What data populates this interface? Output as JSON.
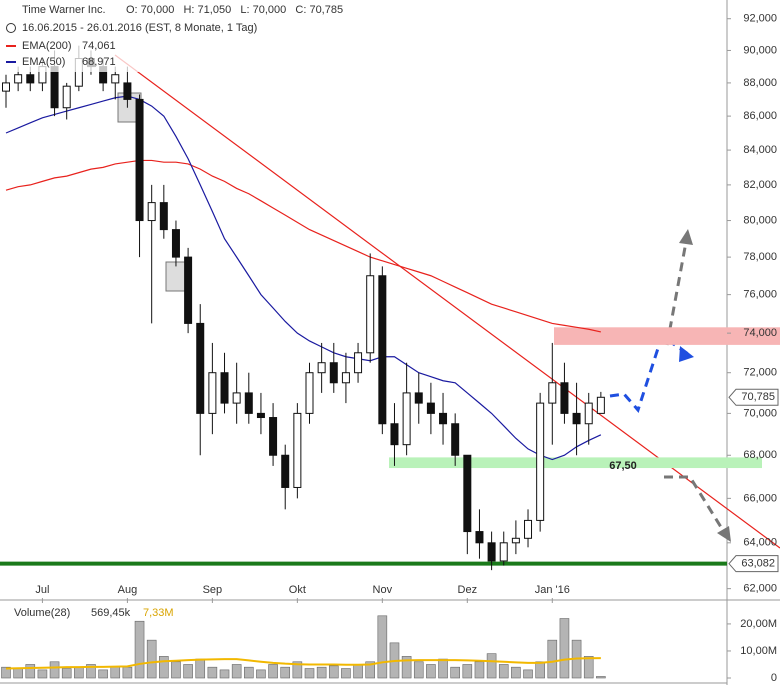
{
  "header": {
    "title": "Time Warner Inc.",
    "ohlc": "O: 70,000   H: 71,050   L: 70,000   C: 70,785",
    "range": "16.06.2015 - 26.01.2016 (EST, 8 Monate, 1 Tag)"
  },
  "chart_data": [
    {
      "type": "candlestick",
      "categories": [
        null,
        null,
        null,
        "Jul",
        null,
        null,
        null,
        null,
        null,
        null,
        "Aug",
        null,
        null,
        null,
        null,
        null,
        null,
        "Sep",
        null,
        null,
        null,
        null,
        null,
        null,
        "Okt",
        null,
        null,
        null,
        null,
        null,
        null,
        "Nov",
        null,
        null,
        null,
        null,
        null,
        null,
        "Dez",
        null,
        null,
        null,
        null,
        null,
        null,
        "Jan '16",
        null,
        null,
        null,
        null
      ],
      "open": [
        87.5,
        88,
        88.5,
        88,
        89,
        86.5,
        87.8,
        89.5,
        89,
        88,
        88,
        87,
        80,
        81,
        79.5,
        78,
        74.5,
        70,
        72,
        70.5,
        71,
        70,
        69.8,
        68,
        66.5,
        70,
        72,
        72.5,
        71.5,
        72,
        73,
        77,
        69.5,
        68.5,
        71,
        70.5,
        70,
        69.5,
        68,
        64.5,
        64,
        63.2,
        64,
        64.2,
        65,
        70.5,
        71.5,
        70,
        69.5,
        70
      ],
      "high": [
        88.5,
        89,
        89,
        89.5,
        90,
        88,
        90.3,
        90,
        89.5,
        89,
        89,
        87.3,
        82,
        82,
        80,
        78.5,
        75.5,
        73.5,
        73,
        72.5,
        72,
        71,
        70.5,
        68.5,
        70.5,
        72.5,
        73.5,
        73.5,
        73,
        73.5,
        78.2,
        77.5,
        70.5,
        72.5,
        72,
        71.5,
        71,
        70,
        68,
        65.5,
        64.5,
        64.5,
        65,
        65.5,
        71,
        73.5,
        72.5,
        71.5,
        71,
        71.05
      ],
      "low": [
        86.5,
        87.5,
        87.5,
        87.5,
        86,
        85.8,
        87.5,
        88.5,
        87.5,
        87,
        86.5,
        78,
        74.5,
        79,
        77.5,
        74,
        68,
        69,
        70,
        69.5,
        69.5,
        69,
        67.5,
        65.5,
        66,
        69.5,
        71,
        71,
        70.5,
        71.5,
        72.5,
        69,
        67.5,
        68,
        69.5,
        69,
        68.5,
        67.5,
        63.5,
        63.3,
        62.8,
        63,
        63.5,
        63.8,
        64.5,
        68.5,
        69.5,
        68,
        68.5,
        70
      ],
      "close": [
        88,
        88.5,
        88,
        89,
        86.5,
        87.8,
        89.5,
        89,
        88,
        88.5,
        87,
        80,
        81,
        79.5,
        78,
        74.5,
        70,
        72,
        70.5,
        71,
        70,
        69.8,
        68,
        66.5,
        70,
        72,
        72.5,
        71.5,
        72,
        73,
        77,
        69.5,
        68.5,
        71,
        70.5,
        70,
        69.5,
        68,
        64.5,
        64,
        63.2,
        64,
        64.2,
        65,
        70.5,
        71.5,
        70,
        69.5,
        70.5,
        70.785
      ],
      "series": [
        {
          "name": "EMA(200)",
          "color": "#e8221d",
          "value_label": "74,061",
          "values": [
            81.7,
            81.9,
            82.0,
            82.2,
            82.4,
            82.5,
            82.7,
            82.9,
            83.0,
            83.2,
            83.3,
            83.4,
            83.4,
            83.3,
            83.3,
            83.2,
            82.9,
            82.5,
            82.2,
            81.8,
            81.5,
            81.1,
            80.7,
            80.3,
            79.9,
            79.5,
            79.2,
            78.9,
            78.6,
            78.3,
            78.0,
            77.8,
            77.6,
            77.4,
            77.2,
            77.0,
            76.7,
            76.4,
            76.1,
            75.8,
            75.5,
            75.3,
            75.1,
            74.9,
            74.7,
            74.5,
            74.4,
            74.3,
            74.2,
            74.061
          ]
        },
        {
          "name": "EMA(50)",
          "color": "#1a1aa0",
          "value_label": "68,971",
          "values": [
            85.0,
            85.3,
            85.6,
            85.9,
            86.1,
            86.3,
            86.5,
            86.7,
            86.9,
            87.1,
            87.2,
            87.0,
            86.6,
            86.0,
            84.8,
            83.5,
            82.0,
            80.5,
            79.0,
            78.0,
            77.0,
            76.0,
            75.3,
            74.6,
            74.0,
            73.6,
            73.3,
            73.0,
            72.8,
            72.7,
            72.6,
            72.8,
            72.8,
            72.4,
            72.0,
            71.8,
            71.6,
            71.5,
            71.0,
            70.5,
            70.0,
            69.4,
            68.8,
            68.3,
            68.0,
            67.8,
            68.0,
            68.4,
            68.7,
            68.971
          ]
        }
      ],
      "ylim": [
        61.6,
        93.2
      ],
      "log_scale": true,
      "yticks": [
        {
          "value": 62,
          "label": "62,000"
        },
        {
          "value": 64,
          "label": "64,000"
        },
        {
          "value": 66,
          "label": "66,000"
        },
        {
          "value": 68,
          "label": "68,000"
        },
        {
          "value": 70,
          "label": "70,000"
        },
        {
          "value": 72,
          "label": "72,000"
        },
        {
          "value": 74,
          "label": "74,000"
        },
        {
          "value": 76,
          "label": "76,000"
        },
        {
          "value": 78,
          "label": "78,000"
        },
        {
          "value": 80,
          "label": "80,000"
        },
        {
          "value": 82,
          "label": "82,000"
        },
        {
          "value": 84,
          "label": "84,000"
        },
        {
          "value": 86,
          "label": "86,000"
        },
        {
          "value": 88,
          "label": "88,000"
        },
        {
          "value": 90,
          "label": "90,000"
        },
        {
          "value": 92,
          "label": "92,000"
        }
      ],
      "last_price": {
        "value": 70.785,
        "label": "70,785"
      },
      "support": {
        "value": 63.082,
        "label": "63,082",
        "color": "#1a7a1a"
      },
      "zones": [
        {
          "low": 73.4,
          "high": 74.3,
          "color": "#f7b5b5"
        },
        {
          "low": 67.4,
          "high": 67.9,
          "color": "#b9f2b9",
          "level": {
            "value": 67.5,
            "label": "67,50"
          }
        }
      ]
    },
    {
      "type": "bar",
      "title": "Volume(28)",
      "legend_values": [
        "569,45k",
        "7,33M"
      ],
      "color": "#b4b4b4",
      "values": [
        4,
        3.5,
        5,
        3,
        6,
        3.5,
        4,
        5,
        3,
        4,
        4,
        21,
        14,
        8,
        6,
        5,
        7,
        4,
        3,
        5,
        4,
        3,
        5,
        4,
        6,
        3.5,
        4,
        4.5,
        3.5,
        5,
        6,
        23,
        13,
        8,
        6,
        5,
        7,
        4,
        5,
        6,
        9,
        5,
        4,
        3,
        6,
        14,
        22,
        14,
        8,
        0.56945
      ],
      "average": {
        "color": "#f2b800",
        "values": [
          3.5,
          3.6,
          3.7,
          3.8,
          3.9,
          4.0,
          4.0,
          4.1,
          4.1,
          4.2,
          4.3,
          5.2,
          5.8,
          6.2,
          6.4,
          6.6,
          6.8,
          6.9,
          7.0,
          7.0,
          6.5,
          6.0,
          5.6,
          5.3,
          5.1,
          5.0,
          5.0,
          5.0,
          4.9,
          4.9,
          5.0,
          5.8,
          6.3,
          6.5,
          6.6,
          6.6,
          6.6,
          6.6,
          6.5,
          6.4,
          6.2,
          6.0,
          5.8,
          5.6,
          5.6,
          6.0,
          6.8,
          7.2,
          7.3,
          7.33
        ]
      },
      "ylim": [
        0,
        27
      ],
      "yticks": [
        {
          "value": 0,
          "label": "0"
        },
        {
          "value": 10,
          "label": "10,00M"
        },
        {
          "value": 20,
          "label": "20,00M"
        }
      ]
    }
  ]
}
